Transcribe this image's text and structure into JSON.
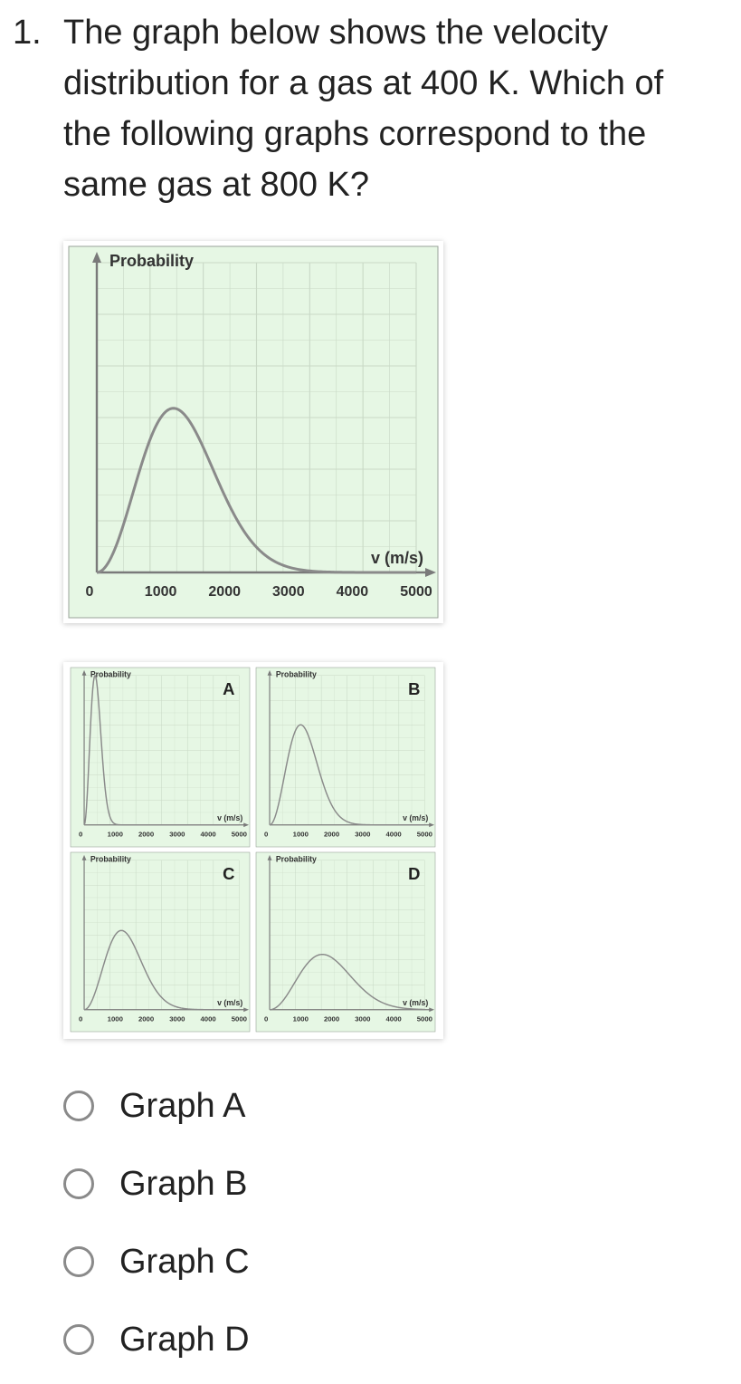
{
  "question": {
    "number": "1.",
    "text": "The graph below shows the velocity distribution for a gas at 400 K. Which of the following graphs correspond to the same gas at 800 K?"
  },
  "chart_data": [
    {
      "id": "main",
      "type": "line",
      "title": "",
      "ylabel": "Probability",
      "xlabel": "v (m/s)",
      "x_ticks": [
        "0",
        "1000",
        "2000",
        "3000",
        "4000",
        "5000"
      ],
      "xlim": [
        0,
        5000
      ],
      "ylim": [
        0,
        1
      ],
      "grid": true,
      "background": "#e6f7e4",
      "line_color": "#8a8a8a",
      "series": [
        {
          "peak_v": 1200,
          "peak_p": 0.53
        }
      ]
    },
    {
      "id": "A",
      "type": "line",
      "panel_label": "A",
      "ylabel": "Probability",
      "xlabel": "v (m/s)",
      "x_ticks": [
        "0",
        "1000",
        "2000",
        "3000",
        "4000",
        "5000"
      ],
      "xlim": [
        0,
        5000
      ],
      "ylim": [
        0,
        1
      ],
      "series": [
        {
          "peak_v": 350,
          "peak_p": 1.0
        }
      ]
    },
    {
      "id": "B",
      "type": "line",
      "panel_label": "B",
      "ylabel": "Probability",
      "xlabel": "v (m/s)",
      "x_ticks": [
        "0",
        "1000",
        "2000",
        "3000",
        "4000",
        "5000"
      ],
      "xlim": [
        0,
        5000
      ],
      "ylim": [
        0,
        1
      ],
      "series": [
        {
          "peak_v": 1000,
          "peak_p": 0.67
        }
      ]
    },
    {
      "id": "C",
      "type": "line",
      "panel_label": "C",
      "ylabel": "Probability",
      "xlabel": "v (m/s)",
      "x_ticks": [
        "0",
        "1000",
        "2000",
        "3000",
        "4000",
        "5000"
      ],
      "xlim": [
        0,
        5000
      ],
      "ylim": [
        0,
        1
      ],
      "series": [
        {
          "peak_v": 1200,
          "peak_p": 0.53
        }
      ]
    },
    {
      "id": "D",
      "type": "line",
      "panel_label": "D",
      "ylabel": "Probability",
      "xlabel": "v (m/s)",
      "x_ticks": [
        "0",
        "1000",
        "2000",
        "3000",
        "4000",
        "5000"
      ],
      "xlim": [
        0,
        5000
      ],
      "ylim": [
        0,
        1
      ],
      "series": [
        {
          "peak_v": 1700,
          "peak_p": 0.37
        }
      ]
    }
  ],
  "options": [
    {
      "label": "Graph A"
    },
    {
      "label": "Graph B"
    },
    {
      "label": "Graph C"
    },
    {
      "label": "Graph D"
    }
  ],
  "colors": {
    "chart_background": "#e6f7e4",
    "grid": "#c9d9c6",
    "axis": "#7a7a7a",
    "radio_border": "#8a8a8a"
  }
}
